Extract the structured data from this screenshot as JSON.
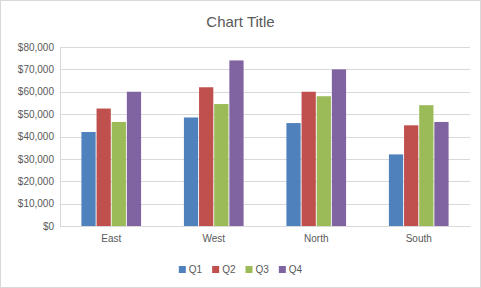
{
  "chart_data": {
    "type": "bar",
    "title": "Chart Title",
    "categories": [
      "East",
      "West",
      "North",
      "South"
    ],
    "series": [
      {
        "name": "Q1",
        "color": "#4f81bd",
        "values": [
          42000,
          48500,
          46000,
          32000
        ]
      },
      {
        "name": "Q2",
        "color": "#c0504d",
        "values": [
          52500,
          62000,
          60000,
          45000
        ]
      },
      {
        "name": "Q3",
        "color": "#9bbb59",
        "values": [
          46500,
          54500,
          58000,
          54000
        ]
      },
      {
        "name": "Q4",
        "color": "#8064a2",
        "values": [
          60000,
          74000,
          70000,
          46500
        ]
      }
    ],
    "ylim": [
      0,
      80000
    ],
    "yticks": [
      {
        "value": 0,
        "label": "$0"
      },
      {
        "value": 10000,
        "label": "$10,000"
      },
      {
        "value": 20000,
        "label": "$20,000"
      },
      {
        "value": 30000,
        "label": "$30,000"
      },
      {
        "value": 40000,
        "label": "$40,000"
      },
      {
        "value": 50000,
        "label": "$50,000"
      },
      {
        "value": 60000,
        "label": "$60,000"
      },
      {
        "value": 70000,
        "label": "$70,000"
      },
      {
        "value": 80000,
        "label": "$80,000"
      }
    ],
    "grid": true,
    "legend": "bottom"
  }
}
